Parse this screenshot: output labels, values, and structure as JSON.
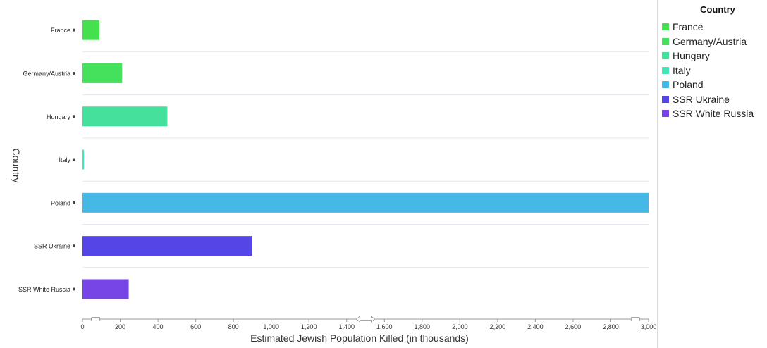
{
  "chart_data": {
    "type": "bar",
    "orientation": "horizontal",
    "categories": [
      "France",
      "Germany/Austria",
      "Hungary",
      "Italy",
      "Poland",
      "SSR Ukraine",
      "SSR White Russia"
    ],
    "values": [
      90,
      210,
      450,
      8,
      3000,
      900,
      245
    ],
    "colors": [
      "#45e04d",
      "#45e05c",
      "#45e19c",
      "#45e4b6",
      "#45b8e6",
      "#5544e6",
      "#7744e6"
    ],
    "xlabel": "Estimated Jewish Population Killed (in thousands)",
    "ylabel": "Country",
    "xlim": [
      0,
      3000
    ],
    "xticks": [
      0,
      200,
      400,
      600,
      800,
      1000,
      1200,
      1400,
      1600,
      1800,
      2000,
      2200,
      2400,
      2600,
      2800,
      3000
    ],
    "xtick_labels": [
      "0",
      "200",
      "400",
      "600",
      "800",
      "1,000",
      "1,200",
      "1,400",
      "1,600",
      "1,800",
      "2,000",
      "2,200",
      "2,400",
      "2,600",
      "2,800",
      "3,000"
    ],
    "grid": "horizontal separators",
    "legend_position": "right",
    "legend_title": "Country"
  }
}
